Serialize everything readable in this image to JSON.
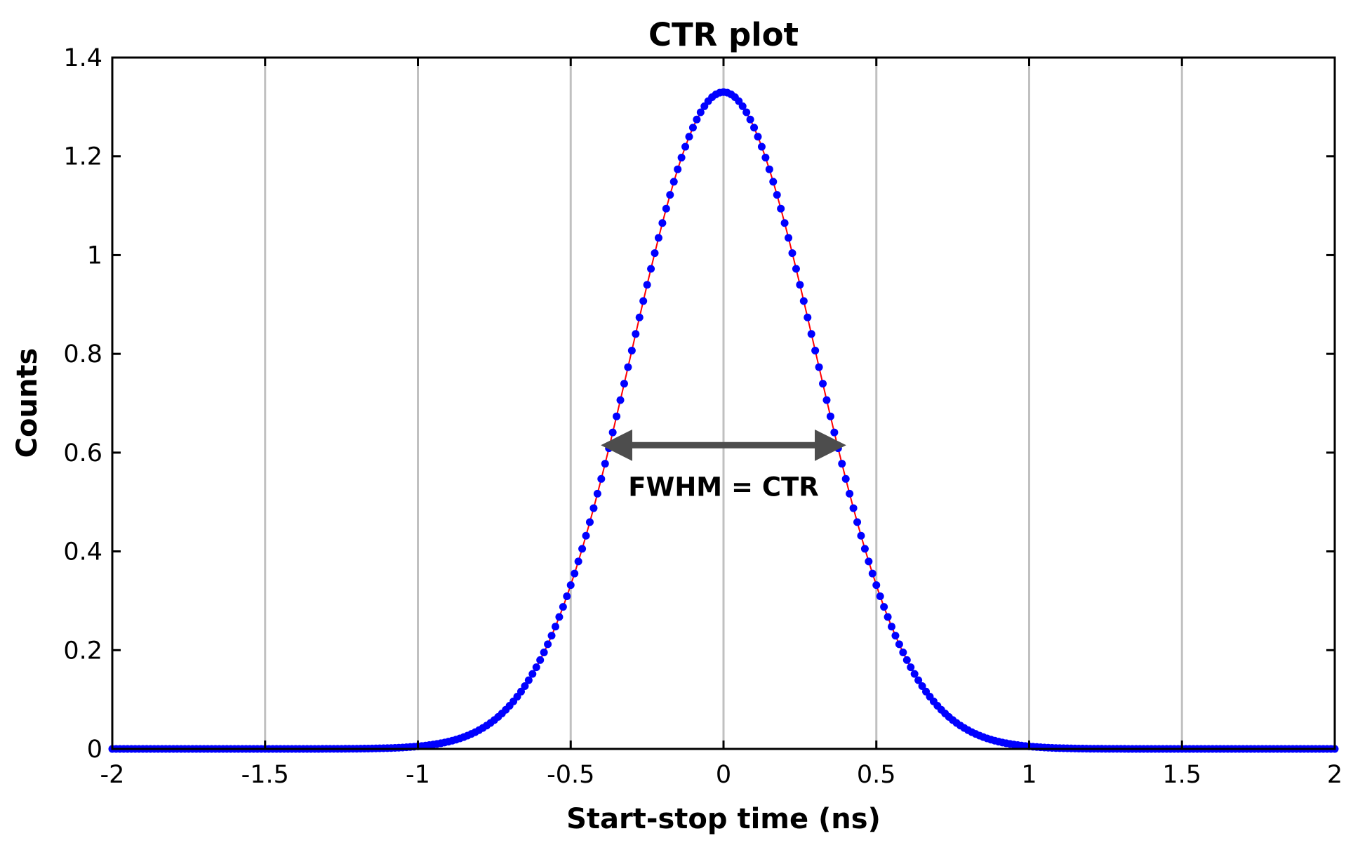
{
  "chart_data": {
    "type": "scatter",
    "title": "CTR plot",
    "xlabel": "Start-stop time (ns)",
    "ylabel": "Counts",
    "xlim": [
      -2,
      2
    ],
    "ylim": [
      0,
      1.4
    ],
    "xticks": [
      -2,
      -1.5,
      -1,
      -0.5,
      0,
      0.5,
      1,
      1.5,
      2
    ],
    "xtick_labels": [
      "-2",
      "-1.5",
      "-1",
      "-0.5",
      "0",
      "0.5",
      "1",
      "1.5",
      "2"
    ],
    "yticks": [
      0,
      0.2,
      0.4,
      0.6,
      0.8,
      1,
      1.2,
      1.4
    ],
    "ytick_labels": [
      "0",
      "0.2",
      "0.4",
      "0.6",
      "0.8",
      "1",
      "1.2",
      "1.4"
    ],
    "grid": "vertical",
    "series": [
      {
        "marker_color": "#0000ff",
        "line_color": "#ff0000",
        "curve": "gaussian",
        "peak_x": 0,
        "peak_y": 1.33,
        "sigma": 0.3,
        "x_start": -2,
        "x_end": 2,
        "x_step": 0.0125
      }
    ],
    "annotation": {
      "text": "FWHM = CTR",
      "arrow": "double",
      "x_start": -0.36,
      "x_end": 0.36,
      "y": 0.615,
      "color": "#4d4d4d"
    }
  }
}
